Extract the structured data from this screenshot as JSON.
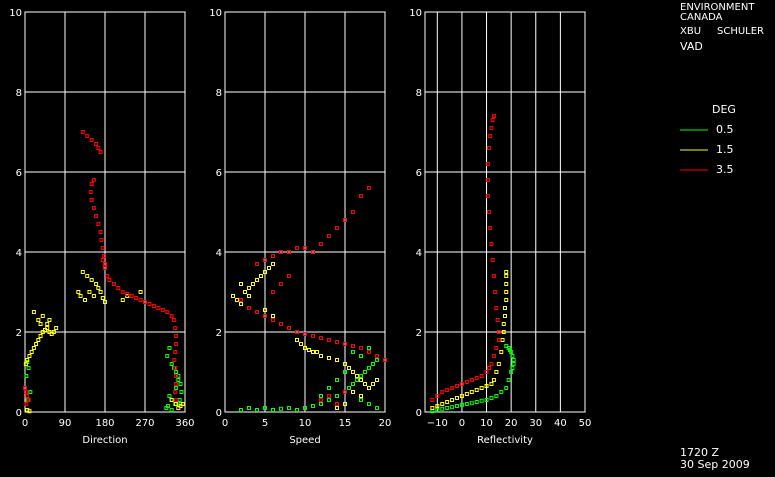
{
  "header": {
    "org_line1": "ENVIRONMENT",
    "org_line2": "CANADA",
    "radar_id": "XBU",
    "site": "SCHULER",
    "product": "VAD"
  },
  "legend": {
    "title": "DEG",
    "placement": "right",
    "entries": [
      {
        "label": "0.5",
        "color": "#00ff00"
      },
      {
        "label": "1.5",
        "color": "#ffff00"
      },
      {
        "label": "3.5",
        "color": "#ff0000"
      }
    ]
  },
  "footer": {
    "time": "1720 Z",
    "date": "30 Sep 2009"
  },
  "chart_data": [
    {
      "type": "scatter",
      "xlabel": "Direction",
      "ylabel": "",
      "xlim": [
        0,
        360
      ],
      "ylim": [
        0,
        10
      ],
      "xticks": [
        "0",
        "90",
        "180",
        "270",
        "360"
      ],
      "yticks": [
        "0",
        "2",
        "4",
        "6",
        "8",
        "10"
      ],
      "grid": true,
      "series": [
        {
          "name": "0.5",
          "color": "#00ff00",
          "x": [
            5,
            8,
            3,
            12,
            6,
            325,
            320,
            330,
            335,
            340,
            345,
            350,
            352,
            348,
            338,
            330,
            325,
            322,
            318,
            330,
            340,
            345,
            350
          ],
          "y": [
            1.25,
            1.1,
            0.9,
            0.5,
            0.3,
            1.6,
            1.4,
            1.2,
            1.1,
            1.0,
            0.9,
            0.7,
            0.5,
            0.3,
            0.2,
            0.3,
            0.4,
            0.15,
            0.1,
            0.05,
            0.6,
            0.8,
            0.2
          ]
        },
        {
          "name": "1.5",
          "color": "#ffff00",
          "x": [
            2,
            5,
            10,
            15,
            20,
            25,
            30,
            35,
            40,
            45,
            50,
            55,
            60,
            65,
            70,
            20,
            30,
            35,
            40,
            50,
            55,
            130,
            140,
            150,
            160,
            165,
            120,
            125,
            135,
            145,
            155,
            170,
            175,
            180,
            220,
            230,
            260,
            330,
            340,
            345,
            350,
            355,
            5,
            10
          ],
          "y": [
            1.2,
            1.3,
            1.4,
            1.5,
            1.6,
            1.7,
            1.8,
            1.9,
            2.0,
            2.05,
            2.1,
            2.0,
            1.95,
            2.0,
            2.1,
            2.5,
            2.3,
            2.2,
            2.4,
            2.2,
            2.3,
            3.5,
            3.4,
            3.3,
            3.2,
            3.1,
            3.0,
            2.9,
            2.8,
            3.0,
            2.9,
            3.0,
            2.85,
            2.75,
            2.8,
            2.9,
            3.0,
            0.3,
            0.2,
            0.1,
            0.15,
            0.2,
            0.05,
            0.02
          ]
        },
        {
          "name": "3.5",
          "color": "#ff0000",
          "x": [
            0,
            2,
            5,
            8,
            3,
            130,
            140,
            150,
            160,
            165,
            170,
            155,
            150,
            148,
            150,
            155,
            160,
            165,
            170,
            172,
            175,
            178,
            180,
            175,
            180,
            185,
            190,
            200,
            210,
            220,
            230,
            240,
            250,
            260,
            270,
            280,
            290,
            300,
            310,
            320,
            330,
            335,
            338,
            340,
            340,
            338,
            336,
            338,
            340,
            340,
            338,
            340
          ],
          "y": [
            0.6,
            0.5,
            0.4,
            0.3,
            0.2,
            7.0,
            6.9,
            6.8,
            6.7,
            6.6,
            6.5,
            5.8,
            5.7,
            5.5,
            5.3,
            5.1,
            4.9,
            4.7,
            4.5,
            4.3,
            4.1,
            3.9,
            3.7,
            3.8,
            3.6,
            3.4,
            3.3,
            3.2,
            3.1,
            3.0,
            2.95,
            2.9,
            2.85,
            2.8,
            2.75,
            2.7,
            2.65,
            2.6,
            2.55,
            2.5,
            2.4,
            2.3,
            2.1,
            1.9,
            1.7,
            1.5,
            1.3,
            1.1,
            0.9,
            0.7,
            0.5,
            0.3
          ]
        }
      ]
    },
    {
      "type": "scatter",
      "xlabel": "Speed",
      "ylabel": "",
      "xlim": [
        0,
        20
      ],
      "ylim": [
        0,
        10
      ],
      "xticks": [
        "0",
        "5",
        "10",
        "15",
        "20"
      ],
      "yticks": [
        "0",
        "2",
        "4",
        "6",
        "8",
        "10"
      ],
      "grid": true,
      "series": [
        {
          "name": "0.5",
          "color": "#00ff00",
          "x": [
            2,
            3,
            4,
            5,
            6,
            7,
            8,
            9,
            10,
            11,
            12,
            13,
            14,
            15,
            15.5,
            16,
            16.5,
            17,
            17.5,
            18,
            18.5,
            19,
            16,
            17,
            18,
            15,
            14,
            13,
            12,
            17,
            18,
            19
          ],
          "y": [
            0.05,
            0.1,
            0.05,
            0.1,
            0.05,
            0.08,
            0.1,
            0.05,
            0.1,
            0.15,
            0.2,
            0.3,
            0.4,
            0.5,
            0.6,
            0.7,
            0.8,
            0.9,
            1.0,
            1.1,
            1.2,
            1.3,
            1.5,
            1.4,
            1.6,
            1.0,
            0.8,
            0.6,
            0.4,
            0.3,
            0.2,
            0.1
          ]
        },
        {
          "name": "1.5",
          "color": "#ffff00",
          "x": [
            1,
            1.5,
            2,
            2.5,
            3,
            3.5,
            4,
            4.5,
            5,
            5.5,
            6,
            9,
            9.5,
            10,
            10.5,
            11,
            11.5,
            12,
            13,
            14,
            15,
            15.5,
            16,
            16.5,
            17,
            17.5,
            18,
            18.5,
            19,
            16,
            17,
            3,
            4,
            5,
            6,
            2,
            3,
            14,
            15
          ],
          "y": [
            2.9,
            2.8,
            2.7,
            3.0,
            3.1,
            3.2,
            3.3,
            3.4,
            3.5,
            3.6,
            3.7,
            1.8,
            1.7,
            1.6,
            1.55,
            1.5,
            1.5,
            1.4,
            1.35,
            1.3,
            1.2,
            1.1,
            1.0,
            0.9,
            0.8,
            0.7,
            0.6,
            0.7,
            0.8,
            0.5,
            0.4,
            2.6,
            2.5,
            2.55,
            2.4,
            3.2,
            2.9,
            0.1,
            0.2
          ]
        },
        {
          "name": "3.5",
          "color": "#ff0000",
          "x": [
            4,
            5,
            6,
            7,
            8,
            9,
            10,
            11,
            12,
            13,
            14,
            15,
            16,
            17,
            18,
            19,
            20,
            11,
            12,
            13,
            14,
            15,
            16,
            17,
            18,
            4,
            5,
            6,
            7,
            8,
            9,
            10,
            6,
            7,
            8,
            2,
            3,
            12,
            13,
            14,
            15
          ],
          "y": [
            2.5,
            2.4,
            2.3,
            2.2,
            2.1,
            2.0,
            1.95,
            1.9,
            1.85,
            1.8,
            1.75,
            1.7,
            1.65,
            1.6,
            1.5,
            1.4,
            1.3,
            4.0,
            4.2,
            4.4,
            4.6,
            4.8,
            5.0,
            5.4,
            5.6,
            3.7,
            3.8,
            3.9,
            4.0,
            4.0,
            4.1,
            4.1,
            3.0,
            3.2,
            3.4,
            2.8,
            2.6,
            0.3,
            0.4,
            0.2,
            0.5
          ]
        }
      ]
    },
    {
      "type": "scatter",
      "xlabel": "Reflectivity",
      "ylabel": "",
      "xlim": [
        -15,
        50
      ],
      "ylim": [
        0,
        10
      ],
      "xticks": [
        "−10",
        "0",
        "10",
        "20",
        "30",
        "40",
        "50"
      ],
      "yticks": [
        "0",
        "2",
        "4",
        "6",
        "8",
        "10"
      ],
      "grid": true,
      "series": [
        {
          "name": "0.5",
          "color": "#00ff00",
          "x": [
            -12,
            -10,
            -8,
            -6,
            -4,
            -2,
            0,
            2,
            4,
            6,
            8,
            10,
            12,
            14,
            16,
            18,
            19,
            20,
            20.5,
            21,
            21,
            20.5,
            20,
            19.5,
            19,
            18
          ],
          "y": [
            0.02,
            0.05,
            0.08,
            0.1,
            0.12,
            0.15,
            0.18,
            0.2,
            0.22,
            0.25,
            0.28,
            0.3,
            0.35,
            0.4,
            0.5,
            0.6,
            0.8,
            1.0,
            1.1,
            1.2,
            1.3,
            1.4,
            1.5,
            1.55,
            1.6,
            1.65
          ]
        },
        {
          "name": "1.5",
          "color": "#ffff00",
          "x": [
            -12,
            -10,
            -8,
            -6,
            -4,
            -2,
            0,
            2,
            4,
            6,
            8,
            10,
            12,
            13,
            14,
            15,
            16,
            16.5,
            17,
            17,
            17.5,
            17.5,
            18,
            18,
            18,
            18,
            18
          ],
          "y": [
            0.1,
            0.15,
            0.2,
            0.25,
            0.3,
            0.35,
            0.4,
            0.45,
            0.5,
            0.55,
            0.6,
            0.65,
            0.7,
            0.8,
            1.0,
            1.2,
            1.5,
            1.8,
            2.0,
            2.2,
            2.4,
            2.6,
            2.8,
            3.0,
            3.2,
            3.4,
            3.5
          ]
        },
        {
          "name": "3.5",
          "color": "#ff0000",
          "x": [
            -12,
            -10,
            -8,
            -6,
            -4,
            -2,
            0,
            2,
            4,
            6,
            8,
            10,
            11,
            12,
            13,
            14,
            15,
            15,
            14.5,
            14,
            13.5,
            13,
            12.5,
            12,
            11.5,
            11,
            10.5,
            10.5,
            10.5,
            11,
            11.5,
            12,
            12.5,
            13
          ],
          "y": [
            0.3,
            0.4,
            0.5,
            0.55,
            0.6,
            0.65,
            0.7,
            0.75,
            0.8,
            0.85,
            0.9,
            1.0,
            1.1,
            1.2,
            1.4,
            1.6,
            1.8,
            2.0,
            2.3,
            2.6,
            3.0,
            3.4,
            3.8,
            4.2,
            4.6,
            5.0,
            5.4,
            5.8,
            6.2,
            6.6,
            6.9,
            7.1,
            7.3,
            7.4
          ]
        }
      ]
    }
  ]
}
